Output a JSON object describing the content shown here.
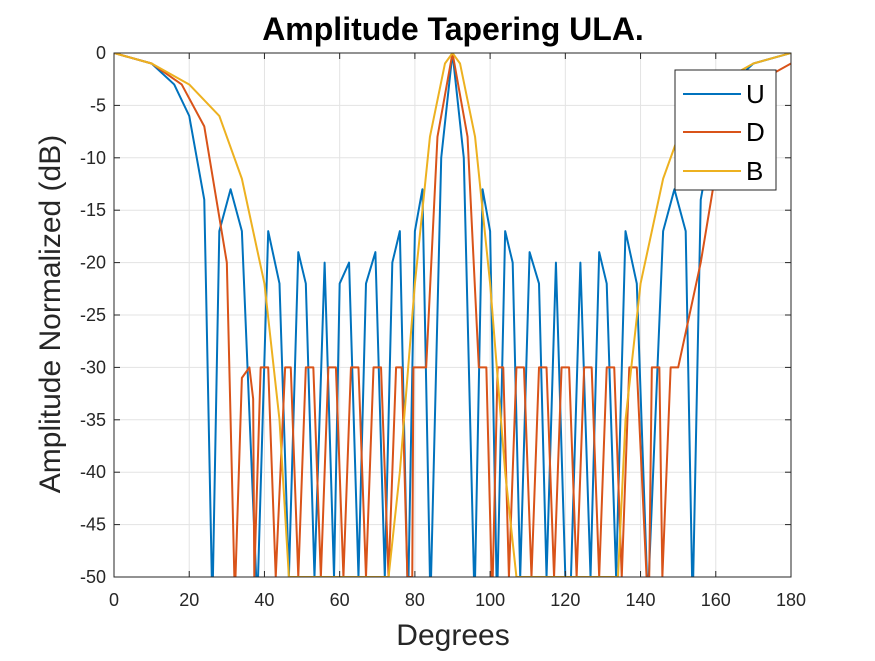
{
  "chart_data": {
    "type": "line",
    "title": "Amplitude Tapering ULA.",
    "xlabel": "Degrees",
    "ylabel": "Amplitude Normalized (dB)",
    "xlim": [
      0,
      180
    ],
    "ylim": [
      -50,
      0
    ],
    "xticks": [
      0,
      20,
      40,
      60,
      80,
      100,
      120,
      140,
      160,
      180
    ],
    "yticks": [
      0,
      -5,
      -10,
      -15,
      -20,
      -25,
      -30,
      -35,
      -40,
      -45,
      -50
    ],
    "grid": true,
    "legend_position": "top-right",
    "series": [
      {
        "name": "U",
        "color": "#0072BD",
        "x": [
          0,
          10,
          16,
          20,
          24,
          26,
          26.3,
          28,
          31,
          34,
          37.8,
          38.3,
          41,
          44,
          46.5,
          49,
          51,
          53.3,
          56,
          58.5,
          60,
          62.5,
          65,
          67,
          69.5,
          72,
          74,
          76,
          78,
          78.3,
          80,
          82,
          84,
          84.3,
          87,
          90,
          93,
          95.7,
          96,
          98,
          100,
          101.7,
          102,
          104,
          106,
          108,
          110.5,
          113,
          115,
          117.5,
          120,
          121.5,
          124,
          126.7,
          129,
          131,
          133.5,
          136,
          139,
          141.7,
          142.2,
          146,
          149,
          152,
          153.7,
          154,
          156,
          160,
          164,
          170,
          180
        ],
        "y": [
          0,
          -1,
          -3,
          -6,
          -14,
          -50,
          -50,
          -17,
          -13,
          -17,
          -50,
          -50,
          -17,
          -22,
          -50,
          -19,
          -22,
          -50,
          -20,
          -50,
          -22,
          -20,
          -50,
          -22,
          -19,
          -50,
          -20,
          -17,
          -50,
          -50,
          -17,
          -13,
          -50,
          -50,
          -10,
          0,
          -10,
          -50,
          -50,
          -13,
          -17,
          -50,
          -50,
          -17,
          -20,
          -50,
          -19,
          -22,
          -50,
          -20,
          -50,
          -50,
          -20,
          -50,
          -19,
          -22,
          -50,
          -17,
          -22,
          -50,
          -50,
          -17,
          -13,
          -17,
          -50,
          -50,
          -14,
          -6,
          -3,
          -1,
          0
        ]
      },
      {
        "name": "D",
        "color": "#D95319",
        "x": [
          0,
          10,
          18,
          24,
          30,
          32,
          32.3,
          34,
          36,
          37,
          37.3,
          39,
          41,
          43,
          45.5,
          47,
          49,
          51,
          53,
          55,
          57,
          59,
          61,
          63,
          65,
          67,
          69,
          71,
          73,
          75,
          76.5,
          78,
          79.3,
          79.6,
          81,
          82,
          83,
          86,
          90,
          94,
          97,
          98,
          99,
          100.4,
          100.7,
          102,
          103.5,
          105,
          107,
          109,
          111,
          113,
          115,
          117,
          119,
          121,
          123,
          125,
          127,
          129,
          131,
          133,
          135,
          137,
          139,
          141.6,
          142.3,
          143,
          144,
          145,
          145.8,
          148,
          150,
          156,
          162,
          170,
          180
        ],
        "y": [
          0,
          -1,
          -3,
          -7,
          -20,
          -50,
          -50,
          -31,
          -30,
          -33,
          -50,
          -30,
          -30,
          -50,
          -30,
          -30,
          -50,
          -30,
          -30,
          -50,
          -30,
          -30,
          -50,
          -30,
          -30,
          -50,
          -30,
          -30,
          -50,
          -30,
          -30,
          -50,
          -50,
          -30,
          -30,
          -30,
          -30,
          -8,
          0,
          -8,
          -30,
          -30,
          -30,
          -50,
          -50,
          -30,
          -30,
          -50,
          -30,
          -30,
          -50,
          -30,
          -30,
          -50,
          -30,
          -30,
          -50,
          -30,
          -30,
          -50,
          -30,
          -30,
          -50,
          -30,
          -30,
          -50,
          -50,
          -30,
          -30,
          -30,
          -50,
          -30,
          -30,
          -20,
          -7,
          -3,
          -1
        ]
      },
      {
        "name": "B",
        "color": "#EDB120",
        "x": [
          0,
          10,
          20,
          28,
          34,
          40,
          44,
          46.5,
          47,
          50,
          55,
          60,
          65,
          70,
          73,
          76,
          80,
          84,
          88,
          90,
          92,
          96,
          100,
          104,
          107,
          110,
          115,
          120,
          125,
          130,
          133,
          134,
          136,
          140,
          146,
          152,
          160,
          170,
          180
        ],
        "y": [
          0,
          -1,
          -3,
          -6,
          -12,
          -22,
          -35,
          -50,
          -50,
          -50,
          -50,
          -50,
          -50,
          -50,
          -50,
          -40,
          -22,
          -8,
          -1,
          0,
          -1,
          -8,
          -22,
          -40,
          -50,
          -50,
          -50,
          -50,
          -50,
          -50,
          -50,
          -50,
          -35,
          -22,
          -12,
          -6,
          -3,
          -1,
          0
        ]
      }
    ]
  }
}
